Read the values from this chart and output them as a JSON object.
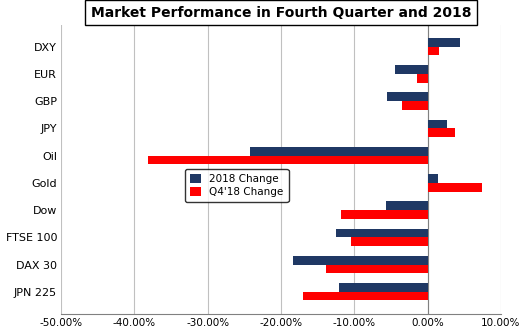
{
  "title": "Market Performance in Fourth Quarter and 2018",
  "categories": [
    "DXY",
    "EUR",
    "GBP",
    "JPY",
    "Oil",
    "Gold",
    "Dow",
    "FTSE 100",
    "DAX 30",
    "JPN 225"
  ],
  "series_2018": [
    0.044,
    -0.044,
    -0.055,
    0.027,
    -0.242,
    0.015,
    -0.056,
    -0.125,
    -0.183,
    -0.121
  ],
  "series_q4": [
    0.016,
    -0.015,
    -0.035,
    0.038,
    -0.382,
    0.075,
    -0.118,
    -0.105,
    -0.138,
    -0.17
  ],
  "color_2018": "#1F3864",
  "color_q4": "#FF0000",
  "legend_labels": [
    "2018 Change",
    "Q4'18 Change"
  ],
  "xlim": [
    -0.5,
    0.1
  ],
  "xtick_vals": [
    -0.5,
    -0.4,
    -0.3,
    -0.2,
    -0.1,
    0.0,
    0.1
  ],
  "background_color": "#FFFFFF",
  "grid_color": "#C0C0C0",
  "title_fontsize": 10,
  "tick_fontsize": 7.5,
  "label_fontsize": 8,
  "bar_height": 0.32
}
